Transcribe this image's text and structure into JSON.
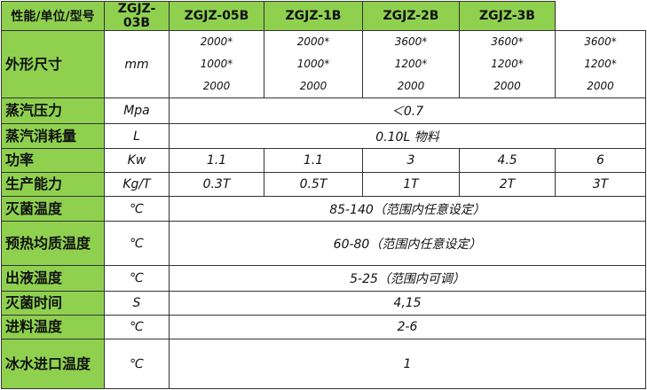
{
  "table": {
    "header": [
      "性能/单位/型号",
      "ZGJZ-03B",
      "ZGJZ-05B",
      "ZGJZ-1B",
      "ZGJZ-2B",
      "ZGJZ-3B"
    ],
    "rows": [
      {
        "label": "外形尺寸",
        "unit": "mm",
        "cells": [
          [
            "2000*",
            "1000*",
            "2000"
          ],
          [
            "2000*",
            "1000*",
            "2000"
          ],
          [
            "3600*",
            "1200*",
            "2000"
          ],
          [
            "3600*",
            "1200*",
            "2000"
          ],
          [
            "3600*",
            "1200*",
            "2000"
          ]
        ]
      },
      {
        "label": "蒸汽压力",
        "unit": "Mpa",
        "merged": "＜0.7"
      },
      {
        "label": "蒸汽消耗量",
        "unit": "L",
        "merged": "0.10L 物料"
      },
      {
        "label": "功率",
        "unit": "Kw",
        "cells": [
          "1.1",
          "1.1",
          "3",
          "4.5",
          "6"
        ]
      },
      {
        "label": "生产能力",
        "unit": "Kg/T",
        "cells": [
          "0.3T",
          "0.5T",
          "1T",
          "2T",
          "3T"
        ]
      },
      {
        "label": "灭菌温度",
        "unit": "℃",
        "merged": "85-140（范围内任意设定）"
      },
      {
        "label": "预热均质温度",
        "unit": "℃",
        "merged": "60-80（范围内任意设定）"
      },
      {
        "label": "出液温度",
        "unit": "℃",
        "merged": "5-25（范围内可调）"
      },
      {
        "label": "灭菌时间",
        "unit": "S",
        "merged": "4,15"
      },
      {
        "label": "进料温度",
        "unit": "℃",
        "merged": "2-6"
      },
      {
        "label": "冰水进口温度",
        "unit": "℃",
        "merged": "1"
      }
    ]
  }
}
